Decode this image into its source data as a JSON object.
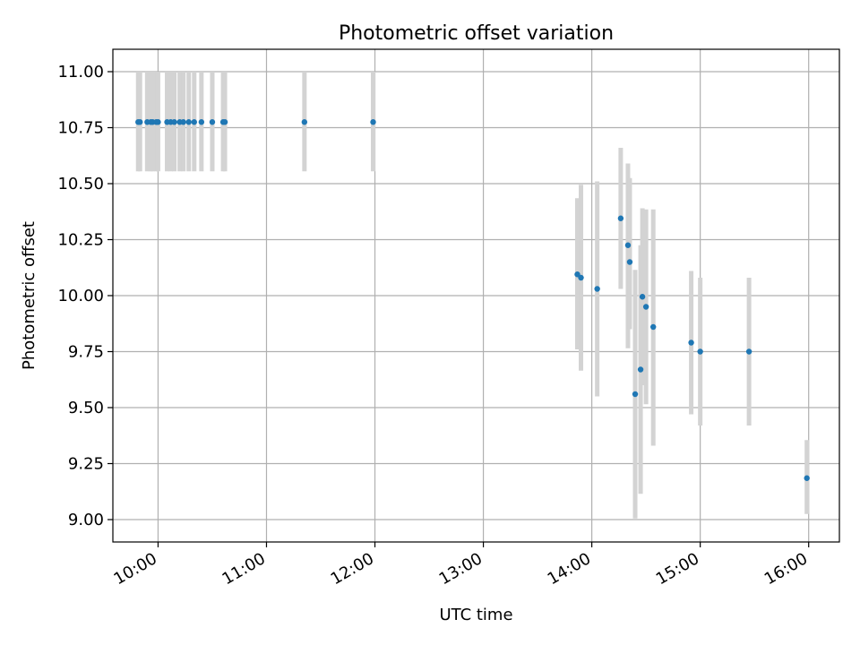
{
  "chart_data": {
    "type": "scatter",
    "title": "Photometric offset variation",
    "xlabel": "UTC time",
    "ylabel": "Photometric offset",
    "xlim": [
      "09:35",
      "16:17"
    ],
    "ylim": [
      8.9,
      11.1
    ],
    "x_ticks": [
      "10:00",
      "11:00",
      "12:00",
      "13:00",
      "14:00",
      "15:00",
      "16:00"
    ],
    "y_ticks": [
      "9.00",
      "9.25",
      "9.50",
      "9.75",
      "10.00",
      "10.25",
      "10.50",
      "10.75",
      "11.00"
    ],
    "grid": true,
    "colors": {
      "points": "#1f77b4",
      "error_bars": "#d3d3d3",
      "grid": "#b0b0b0"
    },
    "series": [
      {
        "x": [
          "09:49",
          "09:50",
          "09:54",
          "09:56",
          "09:57",
          "09:59",
          "10:00",
          "10:05",
          "10:07",
          "10:09",
          "10:12",
          "10:14",
          "10:17",
          "10:20",
          "10:24",
          "10:30",
          "10:36",
          "10:37",
          "11:21",
          "11:59",
          "13:52",
          "13:54",
          "14:03",
          "14:16",
          "14:20",
          "14:21",
          "14:24",
          "14:27",
          "14:28",
          "14:30",
          "14:34",
          "14:55",
          "15:00",
          "15:27",
          "15:59"
        ],
        "y": [
          10.775,
          10.775,
          10.775,
          10.775,
          10.775,
          10.775,
          10.775,
          10.775,
          10.775,
          10.775,
          10.775,
          10.775,
          10.775,
          10.775,
          10.775,
          10.775,
          10.775,
          10.775,
          10.775,
          10.775,
          10.095,
          10.08,
          10.03,
          10.345,
          10.225,
          10.15,
          9.56,
          9.67,
          9.995,
          9.95,
          9.86,
          9.79,
          9.75,
          9.75,
          9.185
        ],
        "y_lower": [
          10.555,
          10.555,
          10.555,
          10.555,
          10.555,
          10.555,
          10.555,
          10.555,
          10.555,
          10.555,
          10.555,
          10.555,
          10.555,
          10.555,
          10.555,
          10.555,
          10.555,
          10.555,
          10.555,
          10.555,
          9.76,
          9.665,
          9.55,
          10.03,
          9.765,
          9.85,
          9.005,
          9.115,
          9.6,
          9.515,
          9.33,
          9.47,
          9.42,
          9.42,
          9.025
        ],
        "y_upper": [
          11.0,
          11.0,
          11.0,
          11.0,
          11.0,
          11.0,
          11.0,
          11.0,
          11.0,
          11.0,
          11.0,
          11.0,
          11.0,
          11.0,
          11.0,
          11.0,
          11.0,
          11.0,
          11.0,
          11.0,
          10.435,
          10.495,
          10.51,
          10.66,
          10.59,
          10.525,
          10.115,
          10.225,
          10.39,
          10.385,
          10.385,
          10.11,
          10.08,
          10.08,
          9.355
        ]
      }
    ]
  }
}
